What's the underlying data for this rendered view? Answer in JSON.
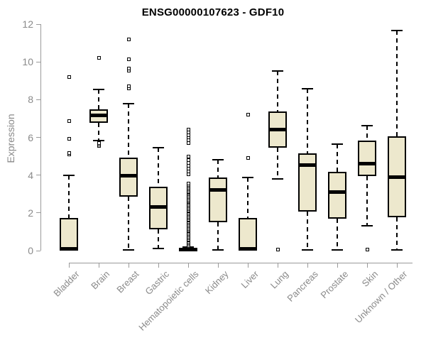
{
  "title": "ENSG00000107623 - GDF10",
  "chart_data": {
    "type": "boxplot",
    "title": "ENSG00000107623 - GDF10",
    "xlabel": "",
    "ylabel": "Expression",
    "ylim": [
      0,
      12
    ],
    "yticks": [
      0,
      2,
      4,
      6,
      8,
      10,
      12
    ],
    "grid": false,
    "legend": "none",
    "categories": [
      "Bladder",
      "Brain",
      "Breast",
      "Gastric",
      "Hematopoietic cells",
      "Kidney",
      "Liver",
      "Lung",
      "Pancreas",
      "Prostate",
      "Skin",
      "Unknown / Other"
    ],
    "series": [
      {
        "category": "Bladder",
        "whisker_low": 0.02,
        "q1": 0.02,
        "median": 0.1,
        "q3": 1.73,
        "whisker_high": 4.0,
        "outliers": [
          5.08,
          5.18,
          5.94,
          6.85,
          9.2
        ]
      },
      {
        "category": "Brain",
        "whisker_low": 5.82,
        "q1": 6.78,
        "median": 7.15,
        "q3": 7.5,
        "whisker_high": 8.55,
        "outliers": [
          5.55,
          5.62,
          5.7,
          10.2
        ]
      },
      {
        "category": "Breast",
        "whisker_low": 0.05,
        "q1": 2.86,
        "median": 3.95,
        "q3": 4.92,
        "whisker_high": 7.8,
        "outliers": [
          8.6,
          8.72,
          9.55,
          9.65,
          10.15,
          11.2
        ]
      },
      {
        "category": "Gastric",
        "whisker_low": 0.1,
        "q1": 1.13,
        "median": 2.3,
        "q3": 3.38,
        "whisker_high": 5.45,
        "outliers": []
      },
      {
        "category": "Hematopoietic cells",
        "whisker_low": 0.0,
        "q1": 0.0,
        "median": 0.04,
        "q3": 0.1,
        "whisker_high": 0.18,
        "outliers": [
          0.25,
          0.32,
          0.39,
          0.46,
          0.53,
          0.6,
          0.67,
          0.74,
          0.81,
          0.88,
          0.95,
          1.02,
          1.09,
          1.16,
          1.23,
          1.3,
          1.37,
          1.44,
          1.51,
          1.58,
          1.65,
          1.72,
          1.79,
          1.86,
          1.93,
          2.0,
          2.07,
          2.14,
          2.21,
          2.28,
          2.35,
          2.42,
          2.49,
          2.56,
          2.63,
          2.7,
          2.77,
          2.84,
          2.91,
          2.98,
          3.05,
          3.12,
          3.19,
          3.26,
          3.33,
          3.4,
          3.47,
          3.54,
          4.05,
          4.2,
          4.35,
          4.5,
          4.65,
          4.8,
          5.0,
          5.7,
          5.85,
          6.0,
          6.1,
          6.25,
          6.4
        ]
      },
      {
        "category": "Kidney",
        "whisker_low": 0.05,
        "q1": 1.5,
        "median": 3.2,
        "q3": 3.87,
        "whisker_high": 4.8,
        "outliers": []
      },
      {
        "category": "Liver",
        "whisker_low": 0.02,
        "q1": 0.02,
        "median": 0.1,
        "q3": 1.73,
        "whisker_high": 3.87,
        "outliers": [
          4.9,
          7.2
        ]
      },
      {
        "category": "Lung",
        "whisker_low": 3.8,
        "q1": 5.45,
        "median": 6.4,
        "q3": 7.38,
        "whisker_high": 9.5,
        "outliers": [
          0.05
        ]
      },
      {
        "category": "Pancreas",
        "whisker_low": 0.05,
        "q1": 2.07,
        "median": 4.55,
        "q3": 5.15,
        "whisker_high": 8.57,
        "outliers": []
      },
      {
        "category": "Prostate",
        "whisker_low": 0.05,
        "q1": 1.7,
        "median": 3.12,
        "q3": 4.17,
        "whisker_high": 5.64,
        "outliers": []
      },
      {
        "category": "Skin",
        "whisker_low": 1.32,
        "q1": 3.95,
        "median": 4.62,
        "q3": 5.83,
        "whisker_high": 6.62,
        "outliers": [
          0.05
        ]
      },
      {
        "category": "Unknown / Other",
        "whisker_low": 0.05,
        "q1": 1.75,
        "median": 3.9,
        "q3": 6.05,
        "whisker_high": 11.65,
        "outliers": []
      }
    ],
    "colors": {
      "box_fill": "#EDE8CD",
      "box_border": "#000000",
      "median": "#000000",
      "whisker": "#000000",
      "outlier_border": "#000000",
      "axis_text": "#8A8A8A",
      "axis_line": "#9A9A9A",
      "title": "#000000",
      "background": "#FFFFFF"
    }
  }
}
